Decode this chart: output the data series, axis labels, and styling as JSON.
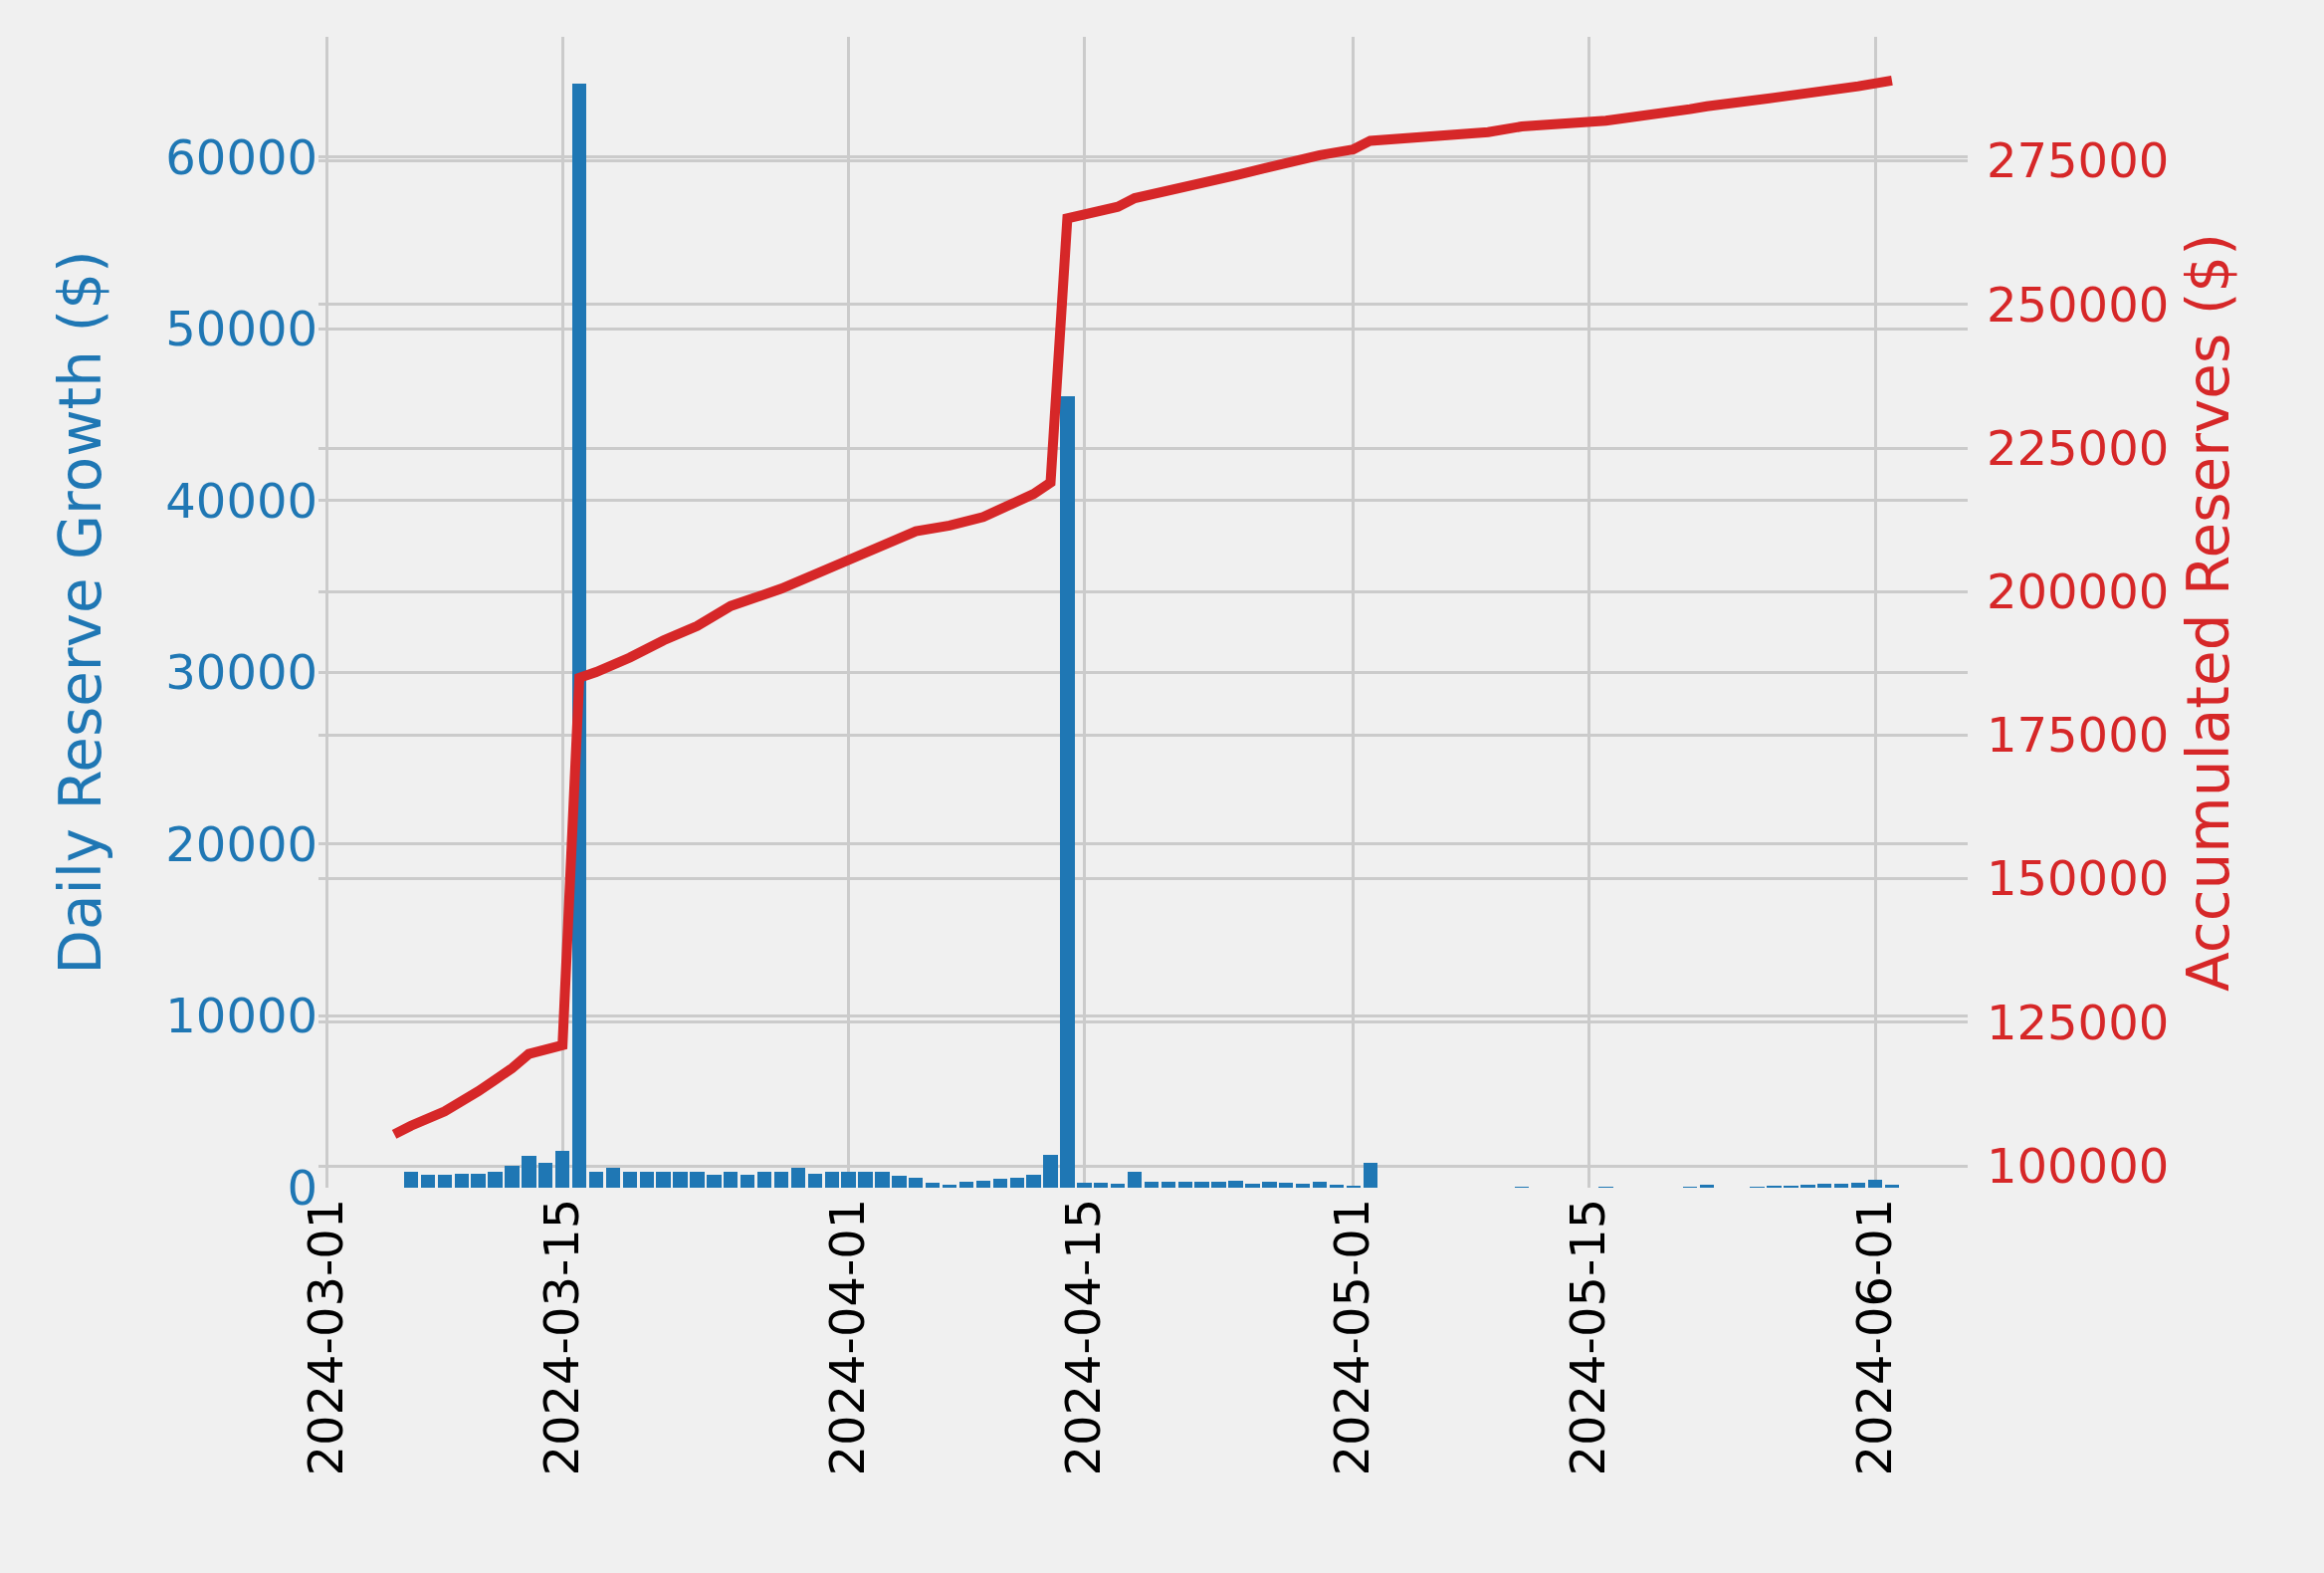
{
  "chart_data": {
    "type": "bar",
    "ylabel": "Daily Reserve Growth ($)",
    "y2label": "Accumulated Reserves ($)",
    "x": [
      "2024-03-06",
      "2024-03-07",
      "2024-03-08",
      "2024-03-09",
      "2024-03-10",
      "2024-03-11",
      "2024-03-12",
      "2024-03-13",
      "2024-03-14",
      "2024-03-15",
      "2024-03-16",
      "2024-03-17",
      "2024-03-18",
      "2024-03-19",
      "2024-03-20",
      "2024-03-21",
      "2024-03-22",
      "2024-03-23",
      "2024-03-24",
      "2024-03-25",
      "2024-03-26",
      "2024-03-27",
      "2024-03-28",
      "2024-03-29",
      "2024-03-30",
      "2024-03-31",
      "2024-04-01",
      "2024-04-02",
      "2024-04-03",
      "2024-04-04",
      "2024-04-05",
      "2024-04-06",
      "2024-04-07",
      "2024-04-08",
      "2024-04-09",
      "2024-04-10",
      "2024-04-11",
      "2024-04-12",
      "2024-04-13",
      "2024-04-14",
      "2024-04-15",
      "2024-04-16",
      "2024-04-17",
      "2024-04-18",
      "2024-04-19",
      "2024-04-20",
      "2024-04-21",
      "2024-04-22",
      "2024-04-23",
      "2024-04-24",
      "2024-04-25",
      "2024-04-26",
      "2024-04-27",
      "2024-04-28",
      "2024-04-29",
      "2024-04-30",
      "2024-05-01",
      "2024-05-02",
      "2024-05-03",
      "2024-05-04",
      "2024-05-05",
      "2024-05-06",
      "2024-05-07",
      "2024-05-08",
      "2024-05-09",
      "2024-05-10",
      "2024-05-11",
      "2024-05-12",
      "2024-05-13",
      "2024-05-14",
      "2024-05-15",
      "2024-05-16",
      "2024-05-17",
      "2024-05-18",
      "2024-05-19",
      "2024-05-20",
      "2024-05-21",
      "2024-05-22",
      "2024-05-23",
      "2024-05-24",
      "2024-05-25",
      "2024-05-26",
      "2024-05-27",
      "2024-05-28",
      "2024-05-29",
      "2024-05-30",
      "2024-05-31",
      "2024-06-01",
      "2024-06-02"
    ],
    "series": [
      {
        "color": "#1f77b4",
        "values": [
          900,
          770,
          730,
          830,
          830,
          900,
          1300,
          1830,
          1470,
          2170,
          64300,
          950,
          1150,
          950,
          950,
          950,
          950,
          950,
          730,
          950,
          770,
          950,
          950,
          1150,
          830,
          950,
          950,
          950,
          950,
          670,
          600,
          270,
          200,
          370,
          430,
          530,
          600,
          730,
          1900,
          46100,
          280,
          280,
          210,
          930,
          350,
          350,
          350,
          350,
          350,
          410,
          210,
          350,
          280,
          210,
          350,
          170,
          70,
          1450,
          null,
          null,
          null,
          null,
          null,
          null,
          null,
          null,
          20,
          null,
          null,
          null,
          null,
          20,
          null,
          null,
          null,
          null,
          20,
          170,
          null,
          null,
          20,
          70,
          100,
          170,
          240,
          240,
          280,
          480,
          170
        ]
      },
      {
        "type": "line",
        "axis": "y2",
        "color": "#d62728",
        "x": [
          "2024-03-05",
          "2024-03-06",
          "2024-03-08",
          "2024-03-10",
          "2024-03-11",
          "2024-03-12",
          "2024-03-13",
          "2024-03-15",
          "2024-03-16",
          "2024-03-17",
          "2024-03-19",
          "2024-03-21",
          "2024-03-23",
          "2024-03-25",
          "2024-03-28",
          "2024-04-01",
          "2024-04-05",
          "2024-04-07",
          "2024-04-09",
          "2024-04-12",
          "2024-04-13",
          "2024-04-14",
          "2024-04-17",
          "2024-04-18",
          "2024-04-24",
          "2024-04-29",
          "2024-05-01",
          "2024-05-02",
          "2024-05-09",
          "2024-05-11",
          "2024-05-16",
          "2024-05-21",
          "2024-05-22",
          "2024-05-26",
          "2024-05-31",
          "2024-06-02"
        ],
        "values": [
          105500,
          107000,
          109500,
          113000,
          115000,
          117000,
          119500,
          121000,
          185000,
          186000,
          188500,
          191500,
          194000,
          197500,
          200500,
          205500,
          210500,
          211500,
          213000,
          217000,
          219000,
          265000,
          267000,
          268500,
          272500,
          276000,
          277000,
          278500,
          280000,
          281000,
          282000,
          284000,
          284500,
          286000,
          288000,
          289000
        ]
      }
    ],
    "xlim": [
      "2024-02-29T12:00",
      "2024-06-06T12:00"
    ],
    "xticks": [
      "2024-03-01",
      "2024-03-15",
      "2024-04-01",
      "2024-04-15",
      "2024-05-01",
      "2024-05-15",
      "2024-06-01"
    ],
    "ylim": [
      0,
      67000
    ],
    "yticks": [
      0,
      10000,
      20000,
      30000,
      40000,
      50000,
      60000
    ],
    "y2lim": [
      96200,
      296600
    ],
    "y2ticks": [
      100000,
      125000,
      150000,
      175000,
      200000,
      225000,
      250000,
      275000
    ],
    "grid": true
  }
}
